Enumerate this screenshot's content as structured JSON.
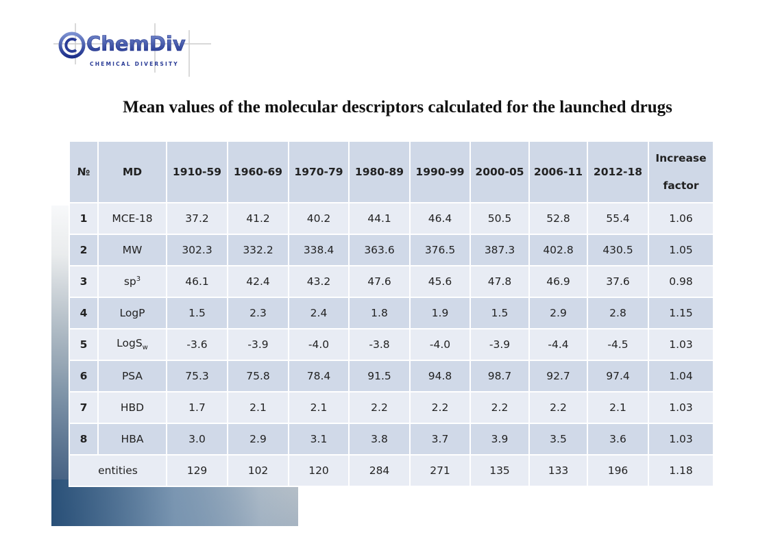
{
  "logo": {
    "name": "ChemDiv",
    "tagline": "CHEMICAL DIVERSITY"
  },
  "title": "Mean values of the molecular descriptors calculated for the launched drugs",
  "table": {
    "headers": [
      "№",
      "MD",
      "1910-59",
      "1960-69",
      "1970-79",
      "1980-89",
      "1990-99",
      "2000-05",
      "2006-11",
      "2012-18"
    ],
    "increase_header": [
      "Increase",
      "factor"
    ],
    "rows": [
      {
        "n": "1",
        "md": "MCE-18",
        "sub": "",
        "sup": "",
        "values": [
          "37.2",
          "41.2",
          "40.2",
          "44.1",
          "46.4",
          "50.5",
          "52.8",
          "55.4",
          "1.06"
        ]
      },
      {
        "n": "2",
        "md": "MW",
        "sub": "",
        "sup": "",
        "values": [
          "302.3",
          "332.2",
          "338.4",
          "363.6",
          "376.5",
          "387.3",
          "402.8",
          "430.5",
          "1.05"
        ]
      },
      {
        "n": "3",
        "md": "sp",
        "sub": "",
        "sup": "3",
        "values": [
          "46.1",
          "42.4",
          "43.2",
          "47.6",
          "45.6",
          "47.8",
          "46.9",
          "37.6",
          "0.98"
        ]
      },
      {
        "n": "4",
        "md": "LogP",
        "sub": "",
        "sup": "",
        "values": [
          "1.5",
          "2.3",
          "2.4",
          "1.8",
          "1.9",
          "1.5",
          "2.9",
          "2.8",
          "1.15"
        ]
      },
      {
        "n": "5",
        "md": "LogS",
        "sub": "w",
        "sup": "",
        "values": [
          "-3.6",
          "-3.9",
          "-4.0",
          "-3.8",
          "-4.0",
          "-3.9",
          "-4.4",
          "-4.5",
          "1.03"
        ]
      },
      {
        "n": "6",
        "md": "PSA",
        "sub": "",
        "sup": "",
        "values": [
          "75.3",
          "75.8",
          "78.4",
          "91.5",
          "94.8",
          "98.7",
          "92.7",
          "97.4",
          "1.04"
        ]
      },
      {
        "n": "7",
        "md": "HBD",
        "sub": "",
        "sup": "",
        "values": [
          "1.7",
          "2.1",
          "2.1",
          "2.2",
          "2.2",
          "2.2",
          "2.2",
          "2.1",
          "1.03"
        ]
      },
      {
        "n": "8",
        "md": "HBA",
        "sub": "",
        "sup": "",
        "values": [
          "3.0",
          "2.9",
          "3.1",
          "3.8",
          "3.7",
          "3.9",
          "3.5",
          "3.6",
          "1.03"
        ]
      }
    ],
    "entities": {
      "label": "entities",
      "values": [
        "129",
        "102",
        "120",
        "284",
        "271",
        "135",
        "133",
        "196",
        "1.18"
      ]
    }
  }
}
